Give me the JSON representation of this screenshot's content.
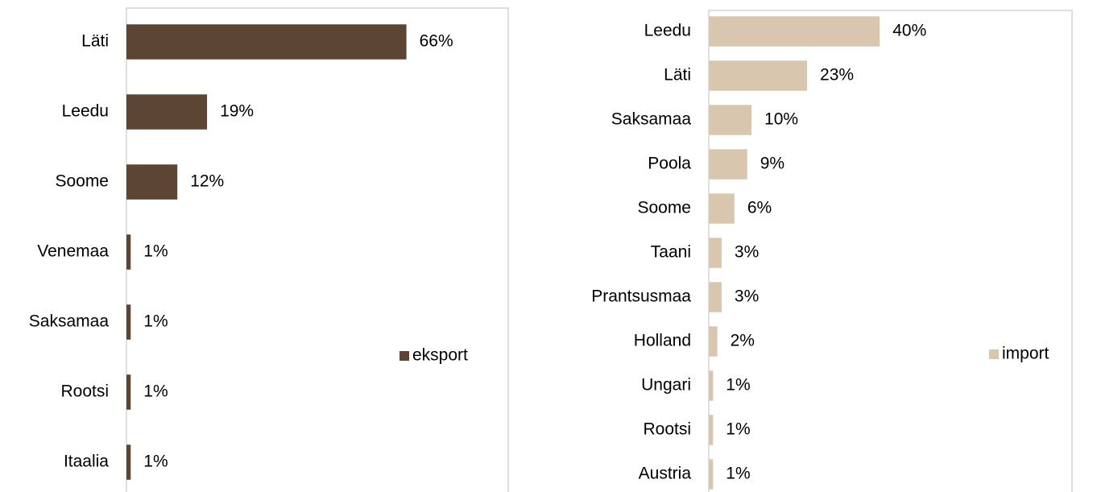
{
  "chart_data": [
    {
      "type": "barh",
      "categories": [
        "Läti",
        "Leedu",
        "Soome",
        "Venemaa",
        "Saksamaa",
        "Rootsi",
        "Itaalia"
      ],
      "series": [
        {
          "name": "eksport",
          "color": "#5c4533",
          "values": [
            66,
            19,
            12,
            1,
            1,
            1,
            1
          ],
          "value_labels": [
            "66%",
            "19%",
            "12%",
            "1%",
            "1%",
            "1%",
            "1%"
          ]
        }
      ],
      "xlim": [
        0,
        90
      ],
      "legend": "right"
    },
    {
      "type": "barh",
      "categories": [
        "Leedu",
        "Läti",
        "Saksamaa",
        "Poola",
        "Soome",
        "Taani",
        "Prantsusmaa",
        "Holland",
        "Ungari",
        "Rootsi",
        "Austria"
      ],
      "series": [
        {
          "name": "import",
          "color": "#d9c6ae",
          "values": [
            40,
            23,
            10,
            9,
            6,
            3,
            3,
            2,
            1,
            1,
            1
          ],
          "value_labels": [
            "40%",
            "23%",
            "10%",
            "9%",
            "6%",
            "3%",
            "3%",
            "2%",
            "1%",
            "1%",
            "1%"
          ]
        }
      ],
      "xlim": [
        0,
        85
      ],
      "legend": "right"
    }
  ]
}
